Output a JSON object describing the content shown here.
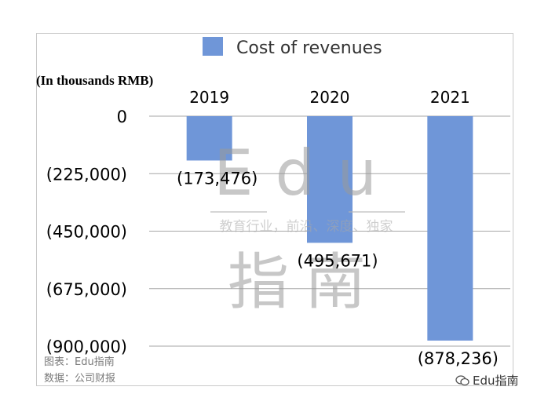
{
  "chart_data": {
    "type": "bar",
    "categories": [
      "2019",
      "2020",
      "2021"
    ],
    "series": [
      {
        "name": "Cost of revenues",
        "values": [
          -173476,
          -495671,
          -878236
        ],
        "color": "#6f96d8"
      }
    ],
    "data_labels": [
      "(173,476)",
      "(495,671)",
      "(878,236)"
    ],
    "y_ticks": [
      0,
      -225000,
      -450000,
      -675000,
      -900000
    ],
    "y_tick_labels": [
      "0",
      "(225,000)",
      "(450,000)",
      "(675,000)",
      "(900,000)"
    ],
    "ylim": [
      -900000,
      0
    ],
    "unit_label": "(In thousands RMB)",
    "grid": true,
    "legend": "top-center",
    "x_axis_position": "top"
  },
  "watermark": {
    "line1": "Edu",
    "tagline": "教育行业，前沿、深度、独家",
    "line2": "指南"
  },
  "footer": {
    "chart_credit": "图表：Edu指南",
    "data_source": "数据：公司财报",
    "brand": "Edu指南"
  }
}
